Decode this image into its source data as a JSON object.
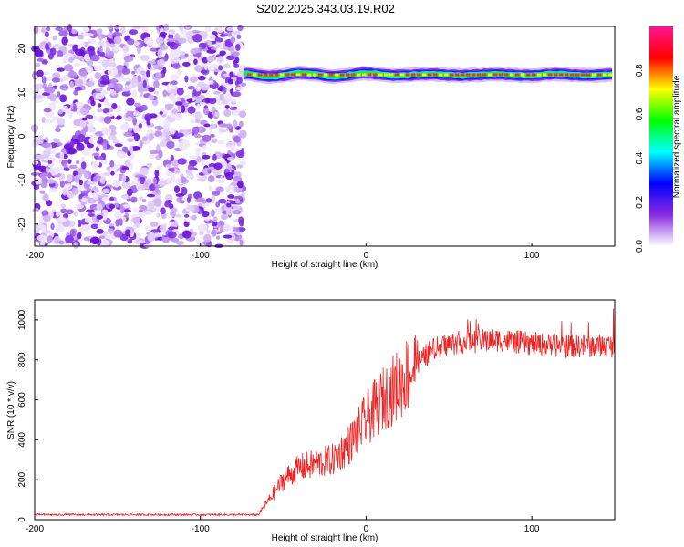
{
  "title": "S202.2025.343.03.19.R02",
  "chart_data": [
    {
      "type": "heatmap",
      "xlabel": "Height of straight line (km)",
      "ylabel": "Frequency (Hz)",
      "xlim": [
        -200,
        150
      ],
      "ylim": [
        -25,
        25
      ],
      "x_ticks": [
        -200,
        -100,
        0,
        100
      ],
      "y_ticks": [
        20,
        10,
        0,
        -10,
        -20
      ],
      "noise_region_x": [
        -200,
        -74
      ],
      "signal_start_x": -74,
      "signal_freq_hz": 14,
      "colorbar": {
        "label": "Normalized spectral amplitude",
        "range": [
          0,
          1
        ],
        "ticks": [
          "0.0",
          "0.2",
          "0.4",
          "0.6",
          "0.8"
        ],
        "colors": [
          "#ffffff",
          "#8a2be2",
          "#0000ff",
          "#00ffff",
          "#00ff00",
          "#ffff00",
          "#ff0000",
          "#ff1493"
        ]
      }
    },
    {
      "type": "line",
      "xlabel": "Height of straight line (km)",
      "ylabel": "SNR (10 * v/v)",
      "xlim": [
        -200,
        150
      ],
      "ylim": [
        0,
        1100
      ],
      "x_ticks": [
        -200,
        -100,
        0,
        100
      ],
      "y_ticks": [
        0,
        200,
        400,
        600,
        800,
        1000
      ],
      "color": "#ee2222",
      "series": [
        {
          "x": [
            -200,
            -150,
            -100,
            -75,
            -65,
            -50,
            -40,
            -30,
            -20,
            -10,
            0,
            10,
            20,
            30,
            40,
            50,
            60,
            80,
            100,
            120,
            150
          ],
          "y": [
            25,
            25,
            25,
            25,
            25,
            200,
            260,
            280,
            300,
            380,
            500,
            600,
            680,
            780,
            850,
            880,
            890,
            900,
            880,
            870,
            870
          ]
        }
      ]
    }
  ]
}
